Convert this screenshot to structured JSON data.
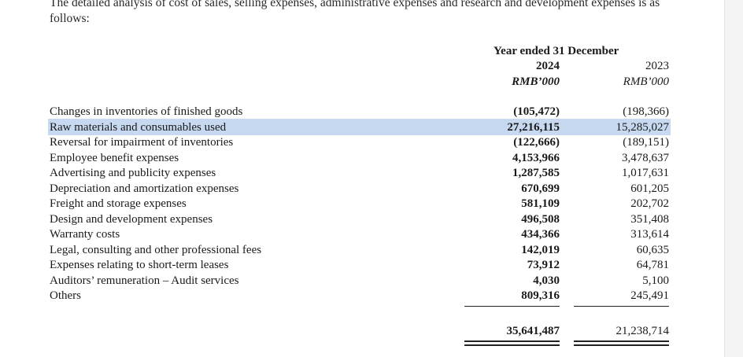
{
  "intro": "The detailed analysis of cost of sales, selling expenses, administrative expenses and research and development expenses is as follows:",
  "header": {
    "period": "Year ended 31 December",
    "year_2024": "2024",
    "year_2023": "2023",
    "currency_2024": "RMB’000",
    "currency_2023": "RMB’000"
  },
  "rows": [
    {
      "label": "Changes in inventories of finished goods",
      "v2024": "(105,472)",
      "v2023": "(198,366)"
    },
    {
      "label": "Raw materials and consumables used",
      "v2024": "27,216,115",
      "v2023": "15,285,027"
    },
    {
      "label": "Reversal for impairment of inventories",
      "v2024": "(122,666)",
      "v2023": "(189,151)"
    },
    {
      "label": "Employee benefit expenses",
      "v2024": "4,153,966",
      "v2023": "3,478,637"
    },
    {
      "label": "Advertising and publicity expenses",
      "v2024": "1,287,585",
      "v2023": "1,017,631"
    },
    {
      "label": "Depreciation and amortization expenses",
      "v2024": "670,699",
      "v2023": "601,205"
    },
    {
      "label": "Freight and storage expenses",
      "v2024": "581,109",
      "v2023": "202,702"
    },
    {
      "label": "Design and development expenses",
      "v2024": "496,508",
      "v2023": "351,408"
    },
    {
      "label": "Warranty costs",
      "v2024": "434,366",
      "v2023": "313,614"
    },
    {
      "label": "Legal, consulting and other professional fees",
      "v2024": "142,019",
      "v2023": "60,635"
    },
    {
      "label": "Expenses relating to short-term leases",
      "v2024": "73,912",
      "v2023": "64,781"
    },
    {
      "label": "Auditors’ remuneration – Audit services",
      "v2024": "4,030",
      "v2023": "5,100"
    },
    {
      "label": "Others",
      "v2024": "809,316",
      "v2023": "245,491"
    }
  ],
  "total": {
    "v2024": "35,641,487",
    "v2023": "21,238,714"
  }
}
